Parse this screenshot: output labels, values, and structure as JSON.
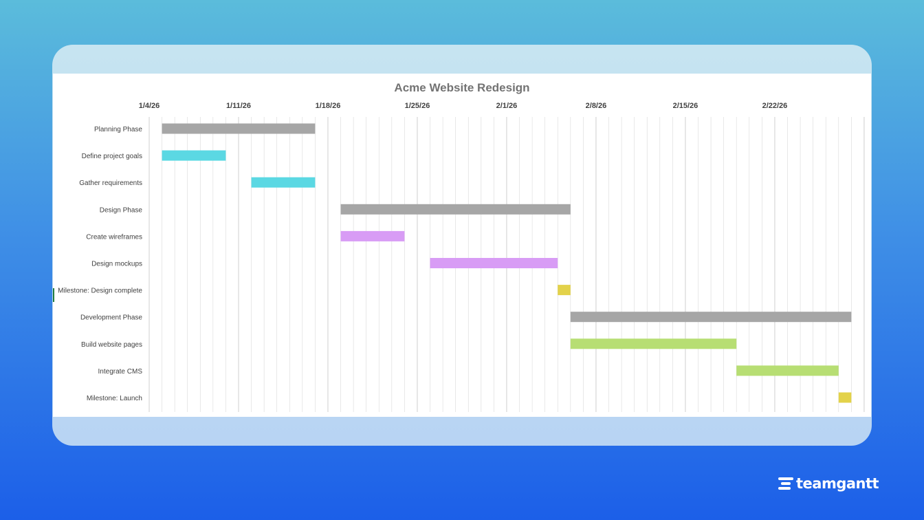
{
  "brand": {
    "name": "teamgantt",
    "icon": "teamgantt-logo-icon"
  },
  "colors": {
    "phase": "#a6a6a6",
    "planning": "#5bd8e3",
    "design": "#d89cf5",
    "milestone": "#e3d24a",
    "development": "#b7de73",
    "gridline": "#d9d9d9"
  },
  "chart_data": {
    "type": "bar",
    "title": "Acme Website Redesign",
    "xaxis": {
      "type": "date",
      "position": "top",
      "range": [
        "2026-01-04",
        "2026-03-02"
      ],
      "ticks": [
        "2026-01-04",
        "2026-01-11",
        "2026-01-18",
        "2026-01-25",
        "2026-02-01",
        "2026-02-08",
        "2026-02-15",
        "2026-02-22"
      ],
      "tick_labels": [
        "1/4/26",
        "1/11/26",
        "1/18/26",
        "1/25/26",
        "2/1/26",
        "2/8/26",
        "2/15/26",
        "2/22/26"
      ]
    },
    "grid": true,
    "tasks": [
      {
        "name": "Planning Phase",
        "start": "2026-01-05",
        "end": "2026-01-17",
        "color": "#a6a6a6"
      },
      {
        "name": "Define project goals",
        "start": "2026-01-05",
        "end": "2026-01-10",
        "color": "#5bd8e3"
      },
      {
        "name": "Gather requirements",
        "start": "2026-01-12",
        "end": "2026-01-17",
        "color": "#5bd8e3"
      },
      {
        "name": "Design Phase",
        "start": "2026-01-19",
        "end": "2026-02-06",
        "color": "#a6a6a6"
      },
      {
        "name": "Create wireframes",
        "start": "2026-01-19",
        "end": "2026-01-24",
        "color": "#d89cf5"
      },
      {
        "name": "Design mockups",
        "start": "2026-01-26",
        "end": "2026-02-05",
        "color": "#d89cf5"
      },
      {
        "name": "Milestone: Design complete",
        "start": "2026-02-05",
        "end": "2026-02-06",
        "color": "#e3d24a"
      },
      {
        "name": "Development Phase",
        "start": "2026-02-06",
        "end": "2026-02-28",
        "color": "#a6a6a6"
      },
      {
        "name": "Build website pages",
        "start": "2026-02-06",
        "end": "2026-02-19",
        "color": "#b7de73"
      },
      {
        "name": "Integrate CMS",
        "start": "2026-02-19",
        "end": "2026-02-27",
        "color": "#b7de73"
      },
      {
        "name": "Milestone: Launch",
        "start": "2026-02-27",
        "end": "2026-02-28",
        "color": "#e3d24a"
      }
    ]
  }
}
